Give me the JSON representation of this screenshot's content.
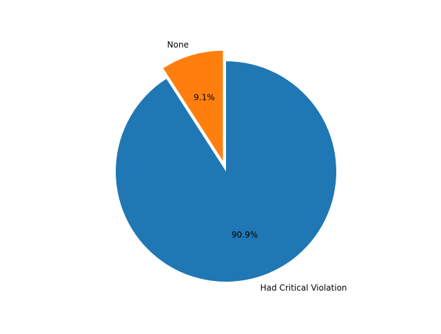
{
  "chart_data": {
    "type": "pie",
    "slices": [
      {
        "label": "Had Critical Violation",
        "value": 90.9,
        "pct_label": "90.9%",
        "color": "#1f77b4",
        "explode": false
      },
      {
        "label": "None",
        "value": 9.1,
        "pct_label": "9.1%",
        "color": "#ff7f0e",
        "explode": true
      }
    ],
    "start_angle_deg": 90,
    "direction": "clockwise",
    "legend": "none"
  }
}
